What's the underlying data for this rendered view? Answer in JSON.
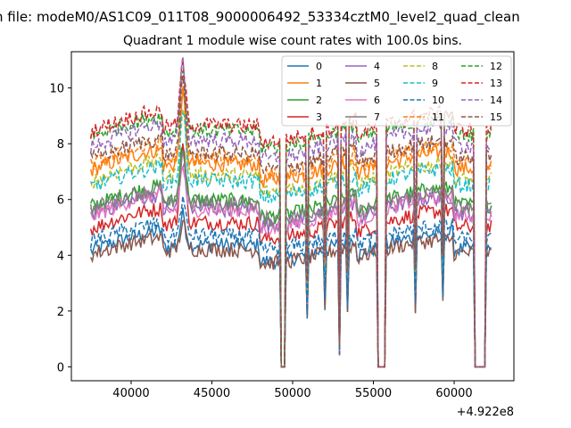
{
  "chart_data": {
    "type": "line",
    "suptitle": "n file: modeM0/AS1C09_011T08_9000006492_53334cztM0_level2_quad_clean",
    "title": "Quadrant 1 module wise count rates with 100.0s bins.",
    "xlabel": "",
    "ylabel": "",
    "x_offset_label": "+4.922e8",
    "xlim": [
      36300,
      63700
    ],
    "ylim": [
      -0.5,
      11.3
    ],
    "xticks": [
      40000,
      45000,
      50000,
      55000,
      60000
    ],
    "xtick_labels": [
      "40000",
      "45000",
      "50000",
      "55000",
      "60000"
    ],
    "yticks": [
      0,
      2,
      4,
      6,
      8,
      10
    ],
    "ytick_labels": [
      "0",
      "2",
      "4",
      "6",
      "8",
      "10"
    ],
    "grid": false,
    "legend_position": "top-right",
    "x_range": [
      37500,
      62300
    ],
    "x_step": 100,
    "gaps": [
      [
        49300,
        49500
      ],
      [
        55300,
        55700
      ],
      [
        61300,
        61900
      ]
    ],
    "dips": [
      [
        50900,
        0.42
      ],
      [
        52000,
        0.5
      ],
      [
        52900,
        0.1
      ],
      [
        53400,
        0.45
      ],
      [
        57600,
        0.45
      ],
      [
        59300,
        0.5
      ]
    ],
    "flare": {
      "center": 43200,
      "width": 230
    },
    "series": [
      {
        "name": "0",
        "color": "#1f77b4",
        "dash": false,
        "level": 4.0,
        "slope": 0.6,
        "flare": 1.1
      },
      {
        "name": "1",
        "color": "#ff7f0e",
        "dash": false,
        "level": 6.9,
        "slope": 0.6,
        "flare": 2.5
      },
      {
        "name": "2",
        "color": "#2ca02c",
        "dash": false,
        "level": 5.6,
        "slope": 0.6,
        "flare": 2.2
      },
      {
        "name": "3",
        "color": "#d62728",
        "dash": false,
        "level": 4.8,
        "slope": 0.6,
        "flare": 2.8
      },
      {
        "name": "4",
        "color": "#9467bd",
        "dash": false,
        "level": 5.3,
        "slope": 0.6,
        "flare": 1.7
      },
      {
        "name": "5",
        "color": "#8c564b",
        "dash": false,
        "level": 3.9,
        "slope": 0.5,
        "flare": 1.0
      },
      {
        "name": "6",
        "color": "#e377c2",
        "dash": false,
        "level": 5.2,
        "slope": 0.7,
        "flare": 1.6
      },
      {
        "name": "7",
        "color": "#7f7f7f",
        "dash": false,
        "level": 5.5,
        "slope": 0.6,
        "flare": 1.9
      },
      {
        "name": "8",
        "color": "#bcbd22",
        "dash": true,
        "level": 6.5,
        "slope": 0.6,
        "flare": 2.4
      },
      {
        "name": "9",
        "color": "#17becf",
        "dash": true,
        "level": 6.3,
        "slope": 0.6,
        "flare": 2.6
      },
      {
        "name": "10",
        "color": "#1f77b4",
        "dash": true,
        "level": 4.4,
        "slope": 0.5,
        "flare": 1.3
      },
      {
        "name": "11",
        "color": "#ff7f0e",
        "dash": true,
        "level": 7.1,
        "slope": 0.6,
        "flare": 2.9
      },
      {
        "name": "12",
        "color": "#2ca02c",
        "dash": true,
        "level": 8.1,
        "slope": 0.6,
        "flare": 2.2
      },
      {
        "name": "13",
        "color": "#d62728",
        "dash": true,
        "level": 8.3,
        "slope": 0.6,
        "flare": 2.2
      },
      {
        "name": "14",
        "color": "#9467bd",
        "dash": true,
        "level": 7.7,
        "slope": 0.7,
        "flare": 2.8
      },
      {
        "name": "15",
        "color": "#8c564b",
        "dash": true,
        "level": 7.3,
        "slope": 0.6,
        "flare": 2.5
      }
    ]
  }
}
